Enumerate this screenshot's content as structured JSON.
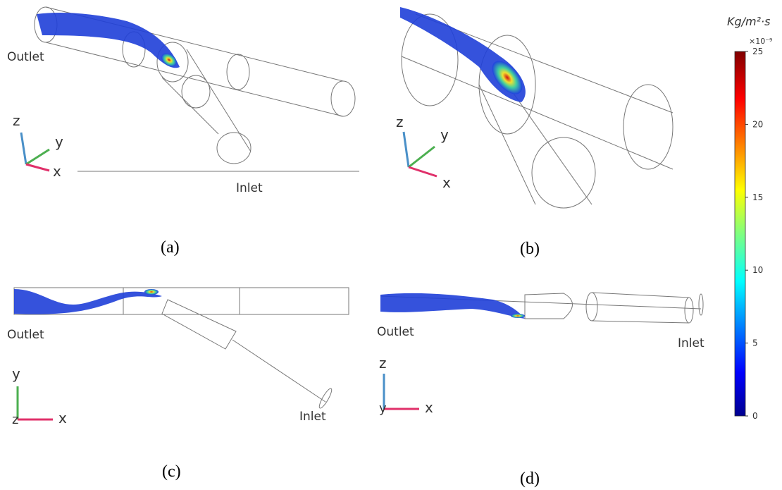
{
  "panels": [
    {
      "label": "(a)",
      "outlet": "Outlet",
      "inlet": "Inlet",
      "axes": [
        "z",
        "y",
        "x"
      ]
    },
    {
      "label": "(b)",
      "axes": [
        "z",
        "y",
        "x"
      ]
    },
    {
      "label": "(c)",
      "outlet": "Outlet",
      "inlet": "Inlet",
      "axes": [
        "y",
        "z",
        "x"
      ]
    },
    {
      "label": "(d)",
      "outlet": "Outlet",
      "inlet": "Inlet",
      "axes": [
        "z",
        "y",
        "x"
      ]
    }
  ],
  "colorbar": {
    "unit": "Kg/m²·s",
    "multiplier": "×10⁻⁹",
    "range": [
      0,
      25
    ],
    "ticks": [
      0,
      5,
      10,
      15,
      20,
      25
    ]
  }
}
